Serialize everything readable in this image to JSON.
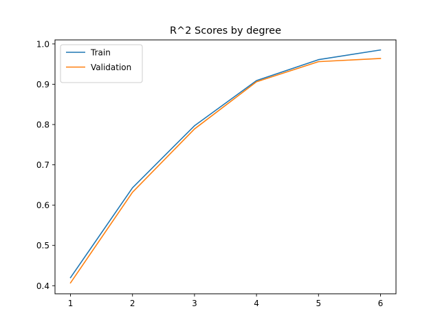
{
  "chart_data": {
    "type": "line",
    "title": "R^2 Scores by degree",
    "xlabel": "",
    "ylabel": "",
    "x": [
      1,
      2,
      3,
      4,
      5,
      6
    ],
    "xlim": [
      0.75,
      6.25
    ],
    "ylim": [
      0.38,
      1.01
    ],
    "xticks": [
      1,
      2,
      3,
      4,
      5,
      6
    ],
    "xtick_labels": [
      "1",
      "2",
      "3",
      "4",
      "5",
      "6"
    ],
    "yticks": [
      0.4,
      0.5,
      0.6,
      0.7,
      0.8,
      0.9,
      1.0
    ],
    "ytick_labels": [
      "0.4",
      "0.5",
      "0.6",
      "0.7",
      "0.8",
      "0.9",
      "1.0"
    ],
    "grid": false,
    "legend_position": "top-left",
    "series": [
      {
        "name": "Train",
        "color": "#1f77b4",
        "values": [
          0.42,
          0.643,
          0.797,
          0.909,
          0.961,
          0.985
        ]
      },
      {
        "name": "Validation",
        "color": "#ff7f0e",
        "values": [
          0.407,
          0.632,
          0.789,
          0.906,
          0.956,
          0.964
        ]
      }
    ]
  }
}
